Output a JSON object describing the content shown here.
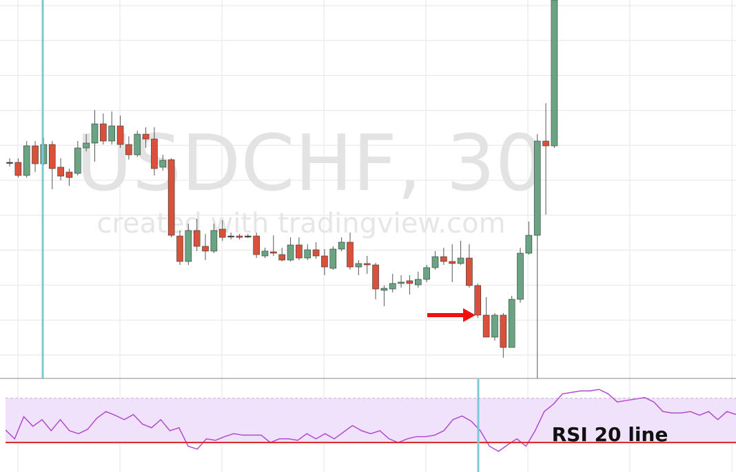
{
  "chart_data": [
    {
      "type": "candlestick",
      "title": "USDCHF, 30",
      "subtitle": "created with tradingview.com",
      "up_color": "#6aa583",
      "down_color": "#d9513a",
      "ylim": [
        0,
        550
      ],
      "open": [
        314,
        314,
        295,
        338,
        312,
        340,
        307,
        300,
        298,
        335,
        342,
        370,
        345,
        367,
        340,
        325,
        355,
        348,
        307,
        318,
        207,
        170,
        215,
        192,
        185,
        217,
        207,
        207,
        207,
        207,
        178,
        184,
        180,
        172,
        194,
        175,
        187,
        178,
        160,
        188,
        198,
        162,
        167,
        165,
        128,
        130,
        138,
        142,
        136,
        144,
        161,
        177,
        170,
        167,
        175,
        135,
        92,
        60,
        92,
        45,
        115,
        182,
        208,
        345,
        338
      ],
      "close": [
        314,
        295,
        338,
        312,
        340,
        305,
        294,
        292,
        335,
        342,
        370,
        345,
        367,
        340,
        325,
        355,
        348,
        305,
        317,
        208,
        170,
        215,
        192,
        185,
        215,
        205,
        207,
        205,
        207,
        180,
        185,
        182,
        172,
        194,
        175,
        187,
        178,
        162,
        188,
        198,
        162,
        167,
        165,
        130,
        131,
        138,
        140,
        138,
        144,
        161,
        177,
        170,
        167,
        175,
        135,
        92,
        60,
        92,
        45,
        115,
        182,
        208,
        345,
        338,
        550
      ],
      "high": [
        320,
        320,
        345,
        345,
        350,
        345,
        320,
        305,
        345,
        355,
        390,
        385,
        388,
        382,
        352,
        360,
        365,
        365,
        325,
        320,
        215,
        225,
        232,
        210,
        225,
        230,
        212,
        210,
        210,
        212,
        190,
        208,
        190,
        205,
        205,
        195,
        198,
        188,
        192,
        205,
        212,
        172,
        178,
        168,
        135,
        152,
        150,
        150,
        155,
        165,
        185,
        190,
        195,
        200,
        195,
        138,
        118,
        95,
        95,
        120,
        190,
        228,
        355,
        400,
        550
      ],
      "low": [
        308,
        292,
        292,
        300,
        310,
        275,
        288,
        280,
        295,
        330,
        315,
        340,
        340,
        335,
        318,
        322,
        335,
        295,
        302,
        205,
        165,
        165,
        185,
        172,
        182,
        200,
        202,
        202,
        204,
        175,
        175,
        178,
        170,
        170,
        172,
        172,
        174,
        150,
        158,
        185,
        158,
        150,
        152,
        115,
        105,
        125,
        132,
        122,
        132,
        140,
        158,
        165,
        140,
        165,
        132,
        88,
        60,
        55,
        30,
        45,
        110,
        180,
        0,
        238,
        335
      ]
    },
    {
      "type": "line",
      "annotation": "RSI 20 line",
      "color": "#b04ad0",
      "level_color": "#e02020",
      "band_color": "#f1e2fb",
      "ylim": [
        -20,
        106
      ],
      "level": 20,
      "band": [
        20,
        80
      ],
      "values": [
        37,
        25,
        55,
        42,
        51,
        36,
        51,
        36,
        32,
        38,
        53,
        62,
        57,
        51,
        58,
        45,
        40,
        51,
        36,
        40,
        15,
        11,
        25,
        23,
        28,
        32,
        30,
        30,
        30,
        20,
        25,
        25,
        23,
        32,
        25,
        32,
        25,
        34,
        43,
        36,
        32,
        36,
        25,
        20,
        25,
        28,
        28,
        30,
        36,
        51,
        56,
        49,
        36,
        15,
        8,
        17,
        25,
        15,
        36,
        62,
        72,
        86,
        88,
        90,
        90,
        92,
        86,
        75,
        77,
        79,
        81,
        75,
        62,
        60,
        60,
        62,
        57,
        62,
        51,
        62,
        58
      ]
    }
  ]
}
